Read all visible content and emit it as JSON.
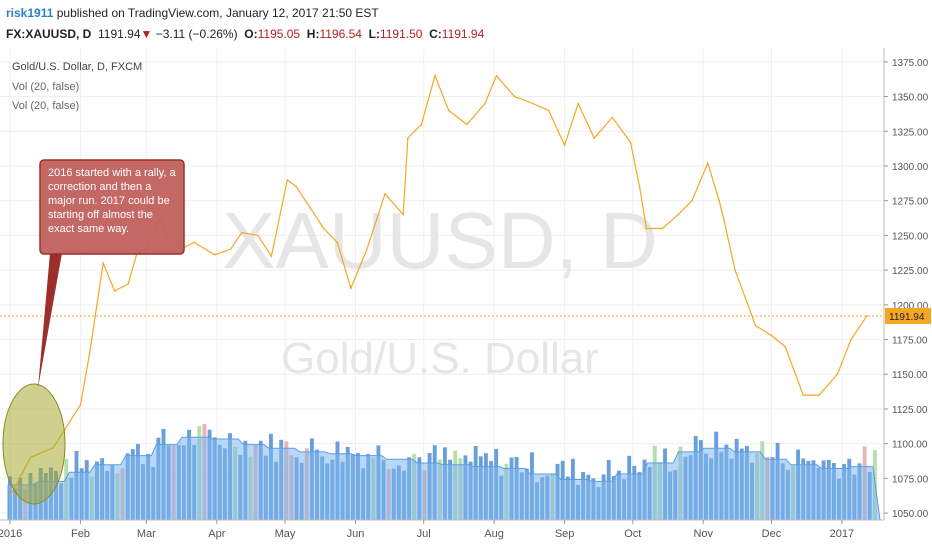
{
  "header": {
    "user": "risk1911",
    "published": "published on TradingView.com, January 12, 2017 21:50 EST",
    "symbol": "FX:XAUUSD, D",
    "last": "1191.94",
    "change": "−3.11 (−0.26%)",
    "o_label": "O:",
    "o_value": "1195.05",
    "h_label": "H:",
    "h_value": "1196.54",
    "l_label": "L:",
    "l_value": "1191.50",
    "c_label": "C:",
    "c_value": "1191.94"
  },
  "legend": [
    "Gold/U.S. Dollar, D, FXCM",
    "Vol (20, false)",
    "Vol (20, false)"
  ],
  "watermark": {
    "symbol": "XAUUSD, D",
    "name": "Gold/U.S. Dollar"
  },
  "annotation": "2016 started with a rally, a correction and then a major run. 2017 could be starting off almost the exact same way.",
  "colors": {
    "price": "#f5a623",
    "volume_bar": "#4f8fd6",
    "volume_area": "#7fb6ee",
    "up_bar": "#a8d8a0",
    "down_bar": "#e8a6a6",
    "callout": "#c0605c",
    "ellipse": "#a8a832"
  },
  "chart_data": {
    "type": "line",
    "title": "Gold/U.S. Dollar, D, FXCM",
    "x": [
      "2016-01-01",
      "2016-01-10",
      "2016-01-20",
      "2016-02-01",
      "2016-02-05",
      "2016-02-11",
      "2016-02-16",
      "2016-02-22",
      "2016-02-26",
      "2016-03-01",
      "2016-03-07",
      "2016-03-10",
      "2016-03-16",
      "2016-03-22",
      "2016-03-31",
      "2016-04-07",
      "2016-04-12",
      "2016-04-19",
      "2016-04-25",
      "2016-05-02",
      "2016-05-06",
      "2016-05-12",
      "2016-05-18",
      "2016-05-24",
      "2016-05-30",
      "2016-06-06",
      "2016-06-14",
      "2016-06-22",
      "2016-06-24",
      "2016-06-30",
      "2016-07-06",
      "2016-07-12",
      "2016-07-20",
      "2016-07-28",
      "2016-08-02",
      "2016-08-10",
      "2016-08-18",
      "2016-08-25",
      "2016-09-01",
      "2016-09-07",
      "2016-09-14",
      "2016-09-22",
      "2016-09-30",
      "2016-10-04",
      "2016-10-07",
      "2016-10-14",
      "2016-10-21",
      "2016-10-27",
      "2016-11-03",
      "2016-11-08",
      "2016-11-10",
      "2016-11-15",
      "2016-11-24",
      "2016-12-01",
      "2016-12-07",
      "2016-12-15",
      "2016-12-22",
      "2016-12-30",
      "2017-01-05",
      "2017-01-12"
    ],
    "series": [
      {
        "values": [
          1062,
          1090,
          1097,
          1128,
          1165,
          1230,
          1210,
          1215,
          1238,
          1240,
          1262,
          1250,
          1240,
          1245,
          1236,
          1240,
          1252,
          1250,
          1235,
          1290,
          1285,
          1270,
          1255,
          1245,
          1212,
          1240,
          1280,
          1265,
          1320,
          1330,
          1365,
          1340,
          1330,
          1345,
          1365,
          1350,
          1345,
          1340,
          1315,
          1345,
          1320,
          1335,
          1317,
          1285,
          1255,
          1255,
          1265,
          1275,
          1302,
          1275,
          1262,
          1225,
          1185,
          1178,
          1170,
          1135,
          1135,
          1150,
          1175,
          1192
        ]
      }
    ],
    "y_axis_ticks": [
      "1375.00",
      "1350.00",
      "1325.00",
      "1300.00",
      "1275.00",
      "1250.00",
      "1225.00",
      "1200.00",
      "1175.00",
      "1150.00",
      "1125.00",
      "1100.00",
      "1075.00",
      "1050.00"
    ],
    "x_axis_ticks": [
      "2016",
      "Feb",
      "Mar",
      "Apr",
      "May",
      "Jun",
      "Jul",
      "Aug",
      "Sep",
      "Oct",
      "Nov",
      "Dec",
      "2017"
    ],
    "ylim": [
      1045,
      1385
    ],
    "last_price_label": "1191.94",
    "grid": true,
    "volume": {
      "label": "Vol (20, false)",
      "relative_levels": [
        0.38,
        0.42,
        0.52,
        0.6,
        0.7,
        0.82,
        0.9,
        0.88,
        0.82,
        0.78,
        0.74,
        0.72,
        0.7,
        0.66,
        0.62,
        0.6,
        0.58,
        0.56,
        0.5,
        0.44,
        0.42,
        0.5,
        0.62,
        0.74,
        0.78,
        0.74,
        0.66,
        0.6,
        0.56,
        0.58
      ]
    }
  }
}
